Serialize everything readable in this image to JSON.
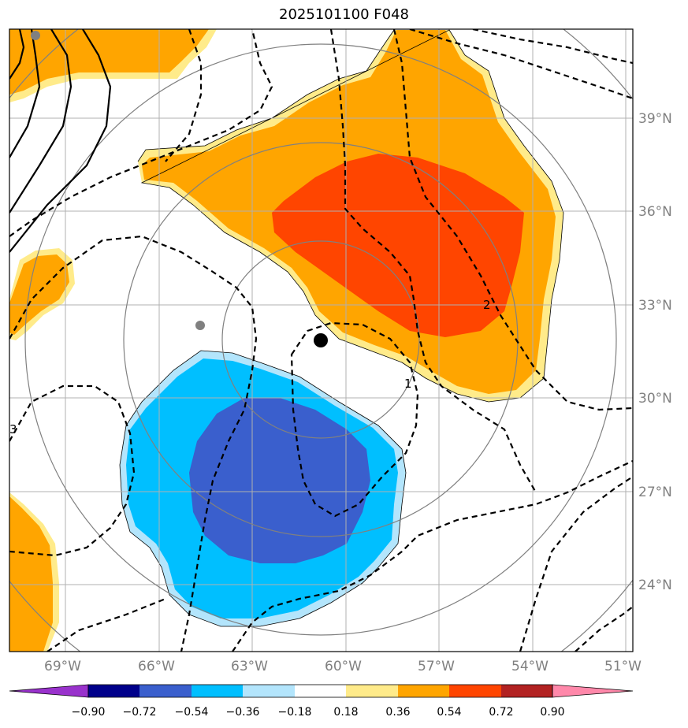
{
  "title": "2025101100 F048",
  "map": {
    "lon_ticks": [
      "69°W",
      "66°W",
      "63°W",
      "60°W",
      "57°W",
      "54°W",
      "51°W"
    ],
    "lat_ticks": [
      "39°N",
      "36°N",
      "33°N",
      "30°N",
      "27°N",
      "24°N"
    ],
    "contour_labels": [
      "1",
      "2",
      "3"
    ],
    "colors": {
      "orange": "#ffa500",
      "red_orange": "#ff4500",
      "light_yellow": "#ffeb8a",
      "deep_sky_blue": "#00bfff",
      "royal_blue": "#3a5fcd",
      "light_blue": "#b3e5fc",
      "range_ring": "#808080",
      "grid": "#b0b0b0"
    }
  },
  "colorbar": {
    "labels": [
      "−0.90",
      "−0.72",
      "−0.54",
      "−0.36",
      "−0.18",
      "0.18",
      "0.36",
      "0.54",
      "0.72",
      "0.90"
    ],
    "colors": [
      "#9932cc",
      "#00008b",
      "#3a5fcd",
      "#00bfff",
      "#b3e5fc",
      "#ffffff",
      "#ffeb8a",
      "#ffa500",
      "#ff4500",
      "#b22222",
      "#ff88aa"
    ]
  }
}
